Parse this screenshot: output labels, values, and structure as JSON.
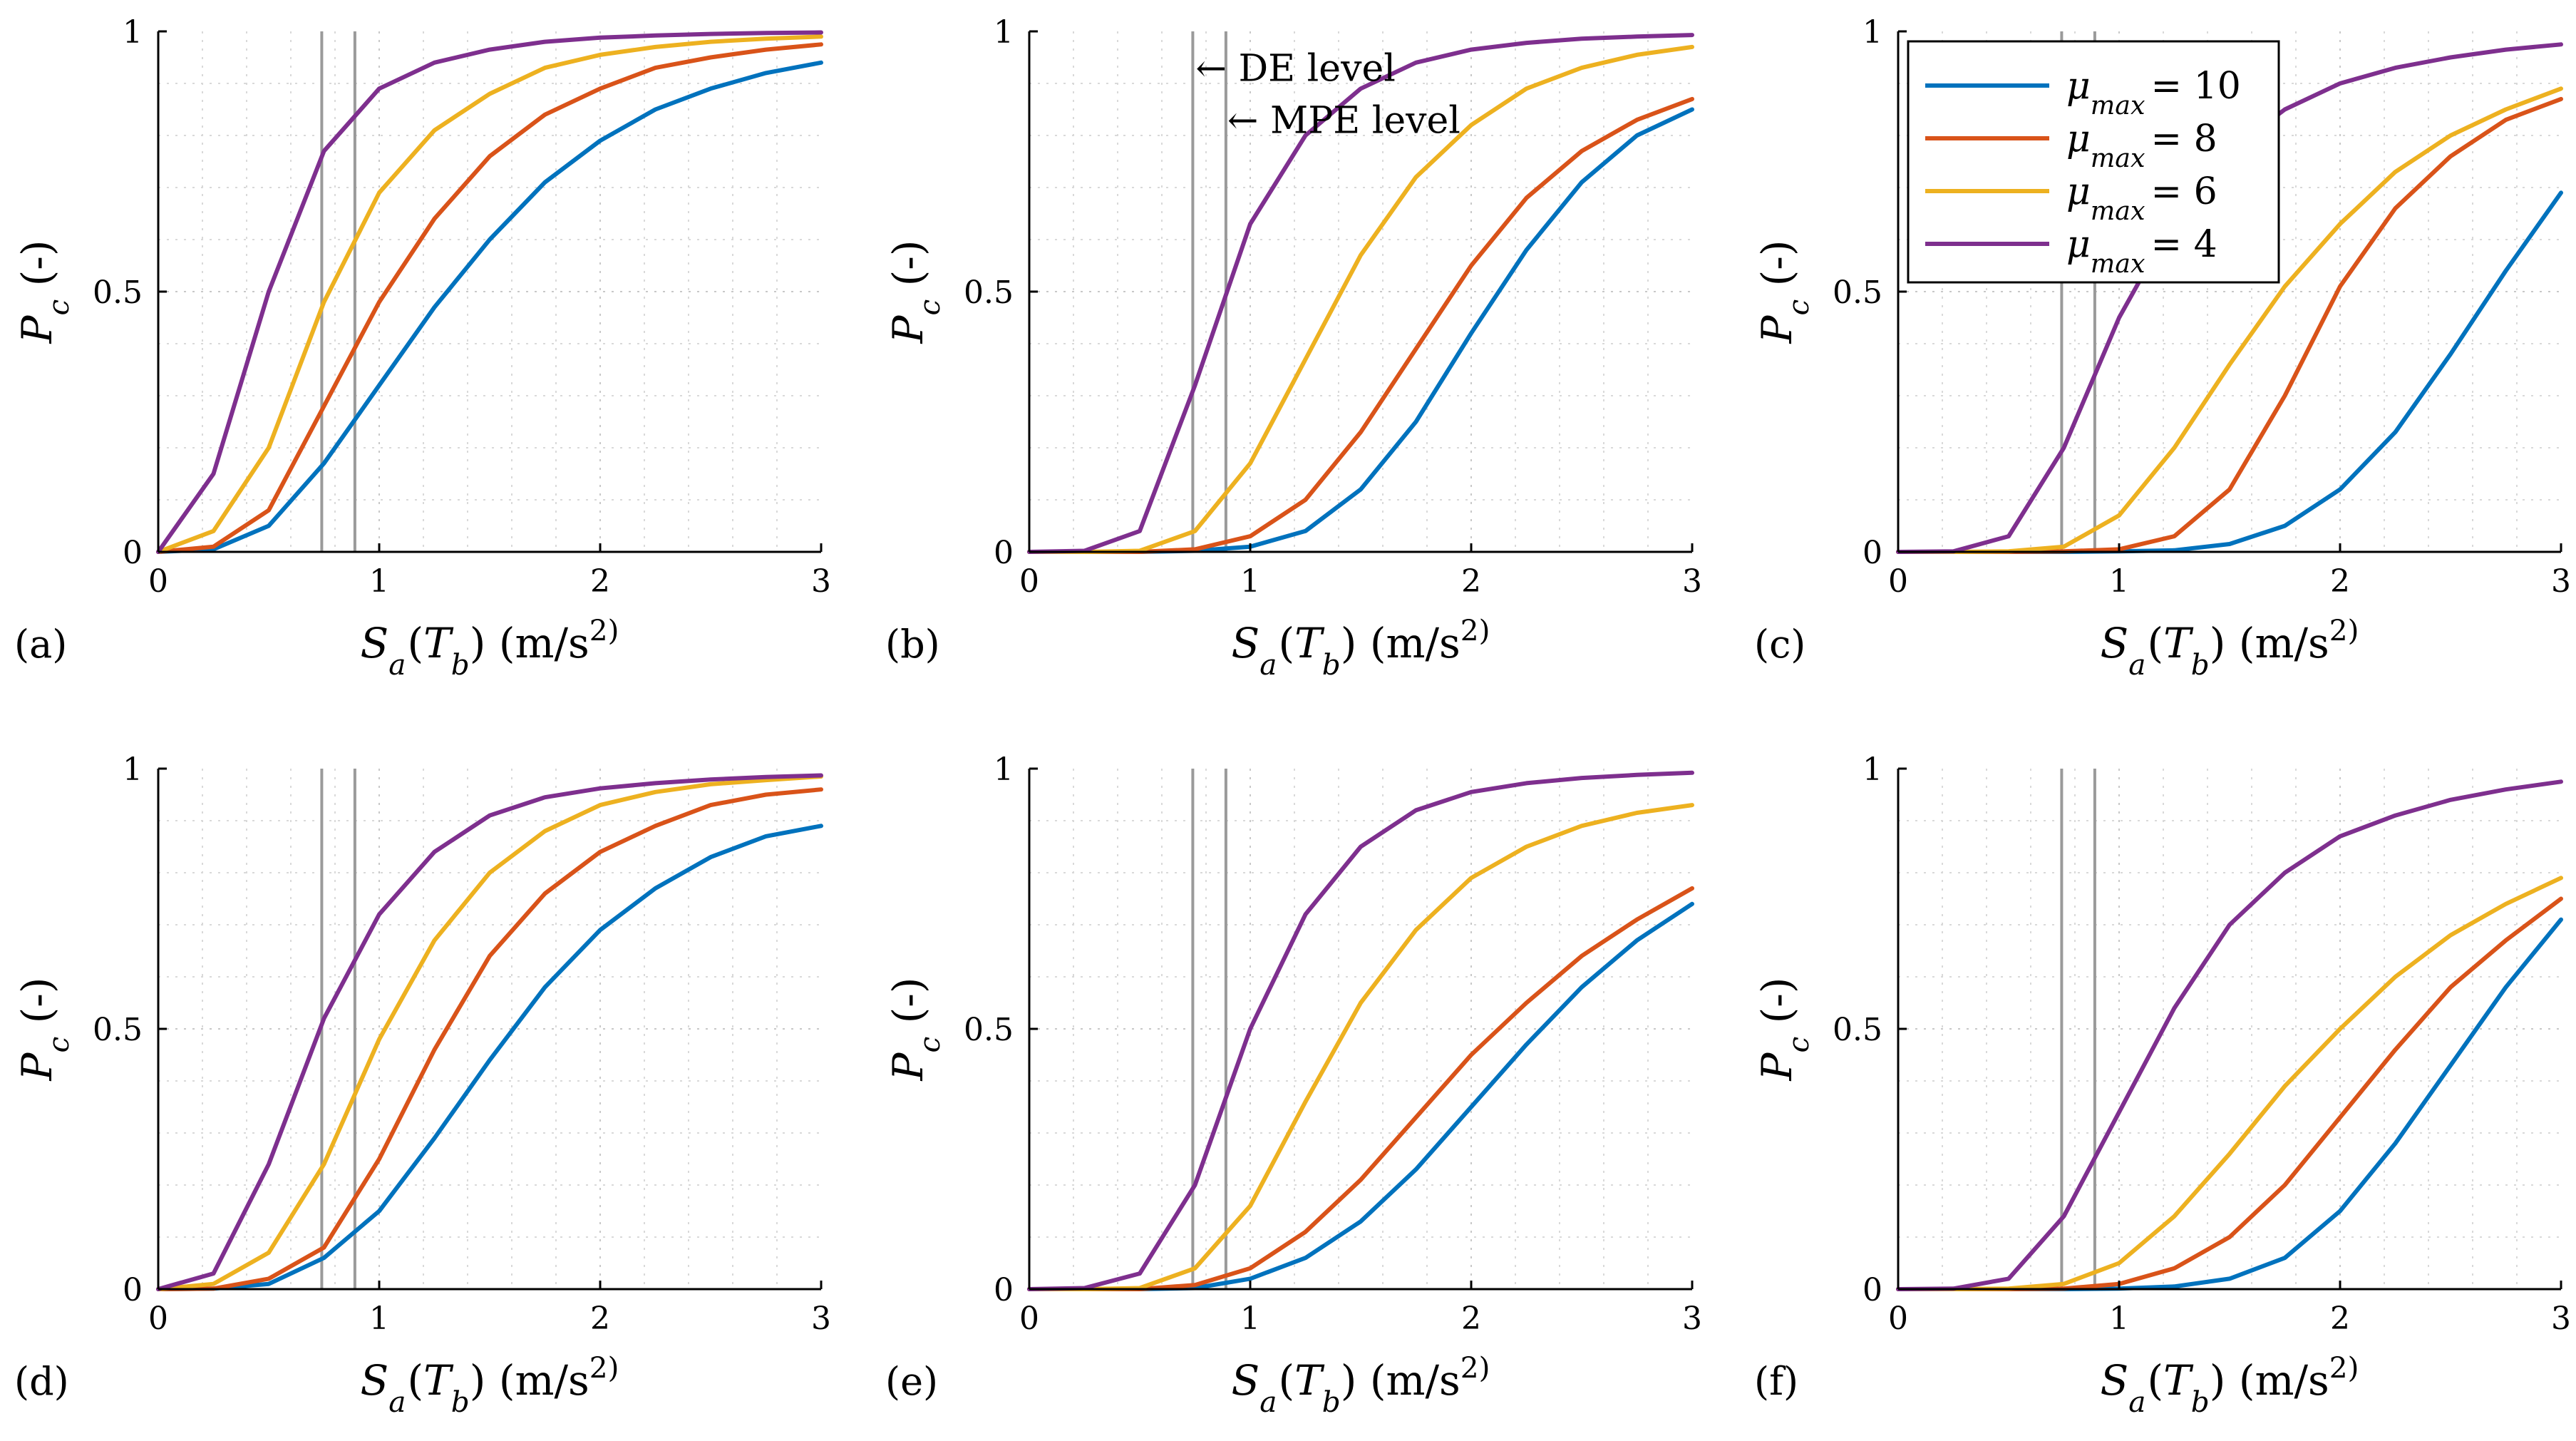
{
  "chart_data": [
    {
      "type": "line",
      "panel": "(a)",
      "xlabel": "S_a(T_b) (m/s^2)",
      "ylabel": "P_c (-)",
      "xlim": [
        0,
        3
      ],
      "ylim": [
        0,
        1
      ],
      "xticks": [
        "0",
        "1",
        "2",
        "3"
      ],
      "yticks": [
        "0",
        "0.5",
        "1"
      ],
      "grid": true,
      "vlines": [
        0.74,
        0.89
      ],
      "series": [
        {
          "name": "μ_max = 10",
          "color": "#0072BD",
          "x": [
            0,
            0.25,
            0.5,
            0.75,
            1.0,
            1.25,
            1.5,
            1.75,
            2.0,
            2.25,
            2.5,
            2.75,
            3.0
          ],
          "values": [
            0,
            0.005,
            0.05,
            0.17,
            0.32,
            0.47,
            0.6,
            0.71,
            0.79,
            0.85,
            0.89,
            0.92,
            0.94
          ]
        },
        {
          "name": "μ_max = 8",
          "color": "#D95319",
          "x": [
            0,
            0.25,
            0.5,
            0.75,
            1.0,
            1.25,
            1.5,
            1.75,
            2.0,
            2.25,
            2.5,
            2.75,
            3.0
          ],
          "values": [
            0,
            0.01,
            0.08,
            0.28,
            0.48,
            0.64,
            0.76,
            0.84,
            0.89,
            0.93,
            0.95,
            0.965,
            0.975
          ]
        },
        {
          "name": "μ_max = 6",
          "color": "#EDB120",
          "x": [
            0,
            0.25,
            0.5,
            0.75,
            1.0,
            1.25,
            1.5,
            1.75,
            2.0,
            2.25,
            2.5,
            2.75,
            3.0
          ],
          "values": [
            0,
            0.04,
            0.2,
            0.48,
            0.69,
            0.81,
            0.88,
            0.93,
            0.955,
            0.97,
            0.98,
            0.986,
            0.99
          ]
        },
        {
          "name": "μ_max = 4",
          "color": "#7E2F8E",
          "x": [
            0,
            0.25,
            0.5,
            0.75,
            1.0,
            1.25,
            1.5,
            1.75,
            2.0,
            2.25,
            2.5,
            2.75,
            3.0
          ],
          "values": [
            0,
            0.15,
            0.5,
            0.77,
            0.89,
            0.94,
            0.965,
            0.98,
            0.988,
            0.992,
            0.995,
            0.997,
            0.998
          ]
        }
      ]
    },
    {
      "type": "line",
      "panel": "(b)",
      "xlabel": "S_a(T_b) (m/s^2)",
      "ylabel": "P_c (-)",
      "xlim": [
        0,
        3
      ],
      "ylim": [
        0,
        1
      ],
      "xticks": [
        "0",
        "1",
        "2",
        "3"
      ],
      "yticks": [
        "0",
        "0.5",
        "1"
      ],
      "grid": true,
      "vlines": [
        0.74,
        0.89
      ],
      "annotations": [
        "← DE level",
        "← MPE level"
      ],
      "series": [
        {
          "name": "μ_max = 10",
          "color": "#0072BD",
          "x": [
            0,
            0.25,
            0.5,
            0.75,
            1.0,
            1.25,
            1.5,
            1.75,
            2.0,
            2.25,
            2.5,
            2.75,
            3.0
          ],
          "values": [
            0,
            0,
            0,
            0.002,
            0.01,
            0.04,
            0.12,
            0.25,
            0.42,
            0.58,
            0.71,
            0.8,
            0.85
          ]
        },
        {
          "name": "μ_max = 8",
          "color": "#D95319",
          "x": [
            0,
            0.25,
            0.5,
            0.75,
            1.0,
            1.25,
            1.5,
            1.75,
            2.0,
            2.25,
            2.5,
            2.75,
            3.0
          ],
          "values": [
            0,
            0,
            0,
            0.005,
            0.03,
            0.1,
            0.23,
            0.39,
            0.55,
            0.68,
            0.77,
            0.83,
            0.87
          ]
        },
        {
          "name": "μ_max = 6",
          "color": "#EDB120",
          "x": [
            0,
            0.25,
            0.5,
            0.75,
            1.0,
            1.25,
            1.5,
            1.75,
            2.0,
            2.25,
            2.5,
            2.75,
            3.0
          ],
          "values": [
            0,
            0,
            0.002,
            0.04,
            0.17,
            0.37,
            0.57,
            0.72,
            0.82,
            0.89,
            0.93,
            0.955,
            0.97
          ]
        },
        {
          "name": "μ_max = 4",
          "color": "#7E2F8E",
          "x": [
            0,
            0.25,
            0.5,
            0.75,
            1.0,
            1.25,
            1.5,
            1.75,
            2.0,
            2.25,
            2.5,
            2.75,
            3.0
          ],
          "values": [
            0,
            0.002,
            0.04,
            0.32,
            0.63,
            0.8,
            0.89,
            0.94,
            0.965,
            0.978,
            0.986,
            0.99,
            0.993
          ]
        }
      ]
    },
    {
      "type": "line",
      "panel": "(c)",
      "xlabel": "S_a(T_b) (m/s^2)",
      "ylabel": "P_c (-)",
      "xlim": [
        0,
        3
      ],
      "ylim": [
        0,
        1
      ],
      "xticks": [
        "0",
        "1",
        "2",
        "3"
      ],
      "yticks": [
        "0",
        "0.5",
        "1"
      ],
      "grid": true,
      "vlines": [
        0.74,
        0.89
      ],
      "legend": {
        "location": "top-right",
        "entries": [
          "μ_max = 10",
          "μ_max = 8",
          "μ_max = 6",
          "μ_max = 4"
        ]
      },
      "series": [
        {
          "name": "μ_max = 10",
          "color": "#0072BD",
          "x": [
            0,
            0.25,
            0.5,
            0.75,
            1.0,
            1.25,
            1.5,
            1.75,
            2.0,
            2.25,
            2.5,
            2.75,
            3.0
          ],
          "values": [
            0,
            0,
            0,
            0,
            0.001,
            0.003,
            0.015,
            0.05,
            0.12,
            0.23,
            0.38,
            0.54,
            0.69
          ]
        },
        {
          "name": "μ_max = 8",
          "color": "#D95319",
          "x": [
            0,
            0.25,
            0.5,
            0.75,
            1.0,
            1.25,
            1.5,
            1.75,
            2.0,
            2.25,
            2.5,
            2.75,
            3.0
          ],
          "values": [
            0,
            0,
            0,
            0.001,
            0.005,
            0.03,
            0.12,
            0.3,
            0.51,
            0.66,
            0.76,
            0.83,
            0.87
          ]
        },
        {
          "name": "μ_max = 6",
          "color": "#EDB120",
          "x": [
            0,
            0.25,
            0.5,
            0.75,
            1.0,
            1.25,
            1.5,
            1.75,
            2.0,
            2.25,
            2.5,
            2.75,
            3.0
          ],
          "values": [
            0,
            0,
            0.001,
            0.01,
            0.07,
            0.2,
            0.36,
            0.51,
            0.63,
            0.73,
            0.8,
            0.85,
            0.89
          ]
        },
        {
          "name": "μ_max = 4",
          "color": "#7E2F8E",
          "x": [
            0,
            0.25,
            0.5,
            0.75,
            1.0,
            1.25,
            1.5,
            1.75,
            2.0,
            2.25,
            2.5,
            2.75,
            3.0
          ],
          "values": [
            0,
            0.001,
            0.03,
            0.2,
            0.45,
            0.64,
            0.77,
            0.85,
            0.9,
            0.93,
            0.95,
            0.965,
            0.975
          ]
        }
      ]
    },
    {
      "type": "line",
      "panel": "(d)",
      "xlabel": "S_a(T_b) (m/s^2)",
      "ylabel": "P_c (-)",
      "xlim": [
        0,
        3
      ],
      "ylim": [
        0,
        1
      ],
      "xticks": [
        "0",
        "1",
        "2",
        "3"
      ],
      "yticks": [
        "0",
        "0.5",
        "1"
      ],
      "grid": true,
      "vlines": [
        0.74,
        0.89
      ],
      "series": [
        {
          "name": "μ_max = 10",
          "color": "#0072BD",
          "x": [
            0,
            0.25,
            0.5,
            0.75,
            1.0,
            1.25,
            1.5,
            1.75,
            2.0,
            2.25,
            2.5,
            2.75,
            3.0
          ],
          "values": [
            0,
            0.001,
            0.01,
            0.06,
            0.15,
            0.29,
            0.44,
            0.58,
            0.69,
            0.77,
            0.83,
            0.87,
            0.89
          ]
        },
        {
          "name": "μ_max = 8",
          "color": "#D95319",
          "x": [
            0,
            0.25,
            0.5,
            0.75,
            1.0,
            1.25,
            1.5,
            1.75,
            2.0,
            2.25,
            2.5,
            2.75,
            3.0
          ],
          "values": [
            0,
            0.001,
            0.02,
            0.08,
            0.25,
            0.46,
            0.64,
            0.76,
            0.84,
            0.89,
            0.93,
            0.95,
            0.96
          ]
        },
        {
          "name": "μ_max = 6",
          "color": "#EDB120",
          "x": [
            0,
            0.25,
            0.5,
            0.75,
            1.0,
            1.25,
            1.5,
            1.75,
            2.0,
            2.25,
            2.5,
            2.75,
            3.0
          ],
          "values": [
            0,
            0.01,
            0.07,
            0.24,
            0.48,
            0.67,
            0.8,
            0.88,
            0.93,
            0.955,
            0.97,
            0.978,
            0.985
          ]
        },
        {
          "name": "μ_max = 4",
          "color": "#7E2F8E",
          "x": [
            0,
            0.25,
            0.5,
            0.75,
            1.0,
            1.25,
            1.5,
            1.75,
            2.0,
            2.25,
            2.5,
            2.75,
            3.0
          ],
          "values": [
            0,
            0.03,
            0.24,
            0.52,
            0.72,
            0.84,
            0.91,
            0.945,
            0.962,
            0.972,
            0.979,
            0.984,
            0.987
          ]
        }
      ]
    },
    {
      "type": "line",
      "panel": "(e)",
      "xlabel": "S_a(T_b) (m/s^2)",
      "ylabel": "P_c (-)",
      "xlim": [
        0,
        3
      ],
      "ylim": [
        0,
        1
      ],
      "xticks": [
        "0",
        "1",
        "2",
        "3"
      ],
      "yticks": [
        "0",
        "0.5",
        "1"
      ],
      "grid": true,
      "vlines": [
        0.74,
        0.89
      ],
      "series": [
        {
          "name": "μ_max = 10",
          "color": "#0072BD",
          "x": [
            0,
            0.25,
            0.5,
            0.75,
            1.0,
            1.25,
            1.5,
            1.75,
            2.0,
            2.25,
            2.5,
            2.75,
            3.0
          ],
          "values": [
            0,
            0,
            0,
            0.002,
            0.02,
            0.06,
            0.13,
            0.23,
            0.35,
            0.47,
            0.58,
            0.67,
            0.74
          ]
        },
        {
          "name": "μ_max = 8",
          "color": "#D95319",
          "x": [
            0,
            0.25,
            0.5,
            0.75,
            1.0,
            1.25,
            1.5,
            1.75,
            2.0,
            2.25,
            2.5,
            2.75,
            3.0
          ],
          "values": [
            0,
            0,
            0,
            0.008,
            0.04,
            0.11,
            0.21,
            0.33,
            0.45,
            0.55,
            0.64,
            0.71,
            0.77
          ]
        },
        {
          "name": "μ_max = 6",
          "color": "#EDB120",
          "x": [
            0,
            0.25,
            0.5,
            0.75,
            1.0,
            1.25,
            1.5,
            1.75,
            2.0,
            2.25,
            2.5,
            2.75,
            3.0
          ],
          "values": [
            0,
            0,
            0.002,
            0.04,
            0.16,
            0.36,
            0.55,
            0.69,
            0.79,
            0.85,
            0.89,
            0.915,
            0.93
          ]
        },
        {
          "name": "μ_max = 4",
          "color": "#7E2F8E",
          "x": [
            0,
            0.25,
            0.5,
            0.75,
            1.0,
            1.25,
            1.5,
            1.75,
            2.0,
            2.25,
            2.5,
            2.75,
            3.0
          ],
          "values": [
            0,
            0.002,
            0.03,
            0.2,
            0.5,
            0.72,
            0.85,
            0.92,
            0.955,
            0.972,
            0.982,
            0.988,
            0.992
          ]
        }
      ]
    },
    {
      "type": "line",
      "panel": "(f)",
      "xlabel": "S_a(T_b) (m/s^2)",
      "ylabel": "P_c (-)",
      "xlim": [
        0,
        3
      ],
      "ylim": [
        0,
        1
      ],
      "xticks": [
        "0",
        "1",
        "2",
        "3"
      ],
      "yticks": [
        "0",
        "0.5",
        "1"
      ],
      "grid": true,
      "vlines": [
        0.74,
        0.89
      ],
      "series": [
        {
          "name": "μ_max = 10",
          "color": "#0072BD",
          "x": [
            0,
            0.25,
            0.5,
            0.75,
            1.0,
            1.25,
            1.5,
            1.75,
            2.0,
            2.25,
            2.5,
            2.75,
            3.0
          ],
          "values": [
            0,
            0,
            0,
            0,
            0.001,
            0.005,
            0.02,
            0.06,
            0.15,
            0.28,
            0.43,
            0.58,
            0.71
          ]
        },
        {
          "name": "μ_max = 8",
          "color": "#D95319",
          "x": [
            0,
            0.25,
            0.5,
            0.75,
            1.0,
            1.25,
            1.5,
            1.75,
            2.0,
            2.25,
            2.5,
            2.75,
            3.0
          ],
          "values": [
            0,
            0,
            0,
            0.001,
            0.01,
            0.04,
            0.1,
            0.2,
            0.33,
            0.46,
            0.58,
            0.67,
            0.75
          ]
        },
        {
          "name": "μ_max = 6",
          "color": "#EDB120",
          "x": [
            0,
            0.25,
            0.5,
            0.75,
            1.0,
            1.25,
            1.5,
            1.75,
            2.0,
            2.25,
            2.5,
            2.75,
            3.0
          ],
          "values": [
            0,
            0,
            0.001,
            0.01,
            0.05,
            0.14,
            0.26,
            0.39,
            0.5,
            0.6,
            0.68,
            0.74,
            0.79
          ]
        },
        {
          "name": "μ_max = 4",
          "color": "#7E2F8E",
          "x": [
            0,
            0.25,
            0.5,
            0.75,
            1.0,
            1.25,
            1.5,
            1.75,
            2.0,
            2.25,
            2.5,
            2.75,
            3.0
          ],
          "values": [
            0,
            0.001,
            0.02,
            0.14,
            0.34,
            0.54,
            0.7,
            0.8,
            0.87,
            0.91,
            0.94,
            0.96,
            0.975
          ]
        }
      ]
    }
  ]
}
